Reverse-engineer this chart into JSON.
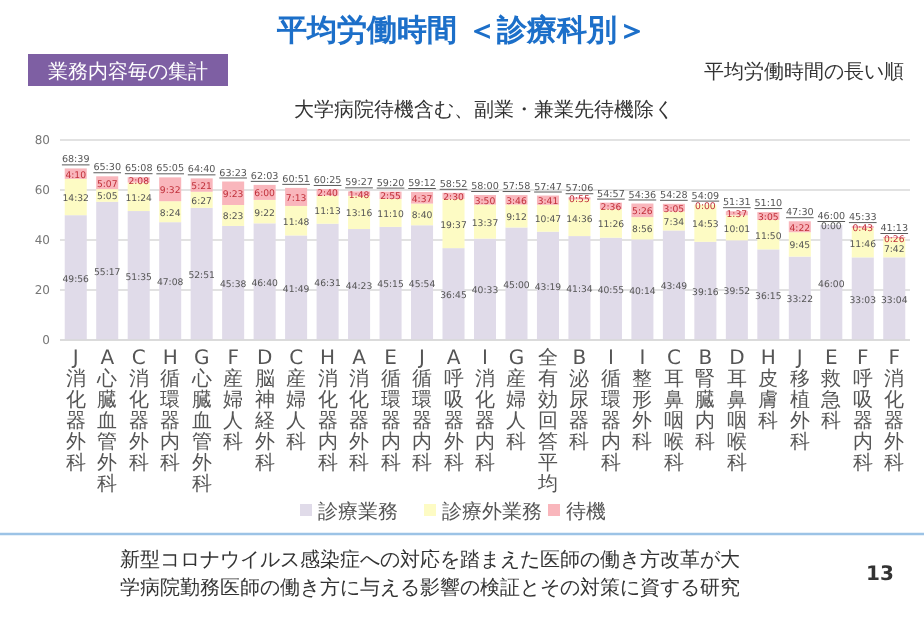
{
  "chart_data": {
    "type": "bar",
    "stacked": true,
    "title": "平均労働時間 ＜診療科別＞",
    "subtitle": "大学病院待機含む、副業・兼業先待機除く",
    "categories": [
      "J 消化器外科",
      "A 心臓血管外科",
      "C 消化器外科",
      "H 循環器内科",
      "G 心臓血管外科",
      "F 産婦人科",
      "D 脳神経外科",
      "C 産婦人科",
      "H 消化器内科",
      "A 消化器外科",
      "E 循環器内科",
      "J 循環器内科",
      "A 呼吸器外科",
      "I 消化器内科",
      "G 産婦人科",
      "全有効回答平均",
      "B 泌尿器科",
      "I 循環器内科",
      "I 整形外科",
      "C 耳鼻咽喉科",
      "B 腎臓内科",
      "D 耳鼻咽喉科",
      "H 皮膚科",
      "J 移植外科",
      "E 救急科",
      "F 呼吸器内科",
      "F 消化器外科"
    ],
    "series": [
      {
        "name": "診療業務",
        "color": "#e0dbe9",
        "values": [
          49.93,
          55.28,
          51.58,
          47.13,
          52.85,
          45.63,
          46.67,
          41.82,
          46.52,
          44.38,
          45.25,
          45.9,
          36.75,
          40.55,
          45,
          43.32,
          41.57,
          40.92,
          40.23,
          43.82,
          39.27,
          39.87,
          36.25,
          33.37,
          46,
          33.05,
          33.07
        ],
        "value_labels": [
          "49:56",
          "55:17",
          "51:35",
          "47:08",
          "52:51",
          "45:38",
          "46:40",
          "41:49",
          "46:31",
          "44:23",
          "45:15",
          "45:54",
          "36:45",
          "40:33",
          "45:00",
          "43:19",
          "41:34",
          "40:55",
          "40:14",
          "43:49",
          "39:16",
          "39:52",
          "36:15",
          "33:22",
          "46:00",
          "33:03",
          "33:04"
        ]
      },
      {
        "name": "診療外業務",
        "color": "#fdfbc4",
        "values": [
          14.53,
          5.08,
          11.4,
          8.4,
          6.45,
          8.38,
          9.37,
          11.8,
          11.22,
          13.27,
          11.17,
          8.67,
          19.62,
          13.62,
          9.2,
          10.78,
          14.6,
          11.43,
          8.93,
          7.57,
          14.88,
          10.02,
          11.83,
          9.75,
          0,
          11.77,
          7.7
        ],
        "value_labels": [
          "14:32",
          "5:05",
          "11:24",
          "8:24",
          "6:27",
          "8:23",
          "9:22",
          "11:48",
          "11:13",
          "13:16",
          "11:10",
          "8:40",
          "19:37",
          "13:37",
          "9:12",
          "10:47",
          "14:36",
          "11:26",
          "8:56",
          "7:34",
          "14:53",
          "10:01",
          "11:50",
          "9:45",
          "0:00",
          "11:46",
          "7:42"
        ]
      },
      {
        "name": "待機",
        "color": "#f9b6bc",
        "values": [
          4.17,
          5.12,
          2.13,
          9.53,
          5.35,
          9.38,
          6,
          7.22,
          2.67,
          1.8,
          2.92,
          4.62,
          2.5,
          3.83,
          3.77,
          3.68,
          0.92,
          2.6,
          5.43,
          3.08,
          0,
          1.62,
          3.08,
          4.37,
          null,
          0.72,
          0.43
        ],
        "value_labels": [
          "4:10",
          "5:07",
          "2:08",
          "9:32",
          "5:21",
          "9:23",
          "6:00",
          "7:13",
          "2:40",
          "1:48",
          "2:55",
          "4:37",
          "2:30",
          "3:50",
          "3:46",
          "3:41",
          "0:55",
          "2:36",
          "5:26",
          "3:05",
          "0:00",
          "1:37",
          "3:05",
          "4:22",
          null,
          "0:43",
          "0:26"
        ]
      }
    ],
    "totals": [
      "68:39",
      "65:30",
      "65:08",
      "65:05",
      "64:40",
      "63:23",
      "62:03",
      "60:51",
      "60:25",
      "59:27",
      "59:20",
      "59:12",
      "58:52",
      "58:00",
      "57:58",
      "57:47",
      "57:06",
      "54:57",
      "54:36",
      "54:28",
      "54:09",
      "51:31",
      "51:10",
      "47:30",
      "46:00",
      "45:33",
      "41:13"
    ],
    "ylim": [
      0,
      80
    ],
    "yticks": [
      0,
      20,
      40,
      60,
      80
    ],
    "grid": "y",
    "legend": "bottom",
    "annotations": [
      "業務内容毎の集計",
      "平均労働時間の長い順",
      "新型コロナウイルス感染症への対応を踏まえた医師の働き方改革が大学病院勤務医師の働き方に与える影響の検証とその対策に資する研究",
      "13"
    ]
  }
}
